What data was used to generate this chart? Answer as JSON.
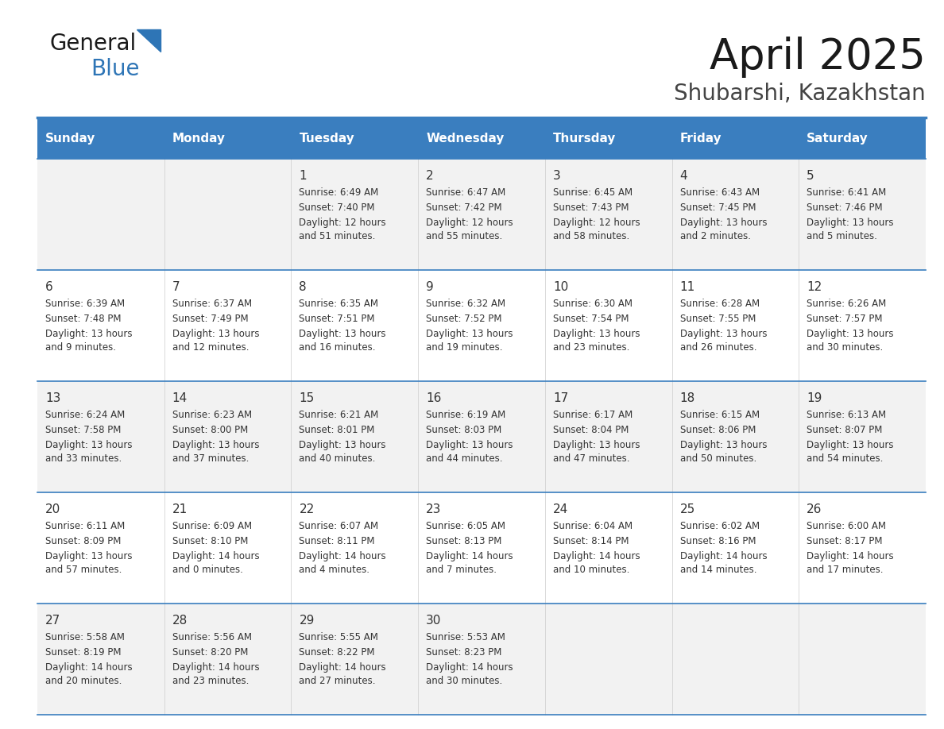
{
  "title": "April 2025",
  "subtitle": "Shubarshi, Kazakhstan",
  "header_bg": "#3a7ebf",
  "header_text": "#ffffff",
  "row_bg_odd": "#f2f2f2",
  "row_bg_even": "#ffffff",
  "text_color": "#333333",
  "line_color": "#3a7ebf",
  "days_of_week": [
    "Sunday",
    "Monday",
    "Tuesday",
    "Wednesday",
    "Thursday",
    "Friday",
    "Saturday"
  ],
  "weeks": [
    [
      {
        "day": "",
        "sunrise": "",
        "sunset": "",
        "daylight": ""
      },
      {
        "day": "",
        "sunrise": "",
        "sunset": "",
        "daylight": ""
      },
      {
        "day": "1",
        "sunrise": "Sunrise: 6:49 AM",
        "sunset": "Sunset: 7:40 PM",
        "daylight": "Daylight: 12 hours\nand 51 minutes."
      },
      {
        "day": "2",
        "sunrise": "Sunrise: 6:47 AM",
        "sunset": "Sunset: 7:42 PM",
        "daylight": "Daylight: 12 hours\nand 55 minutes."
      },
      {
        "day": "3",
        "sunrise": "Sunrise: 6:45 AM",
        "sunset": "Sunset: 7:43 PM",
        "daylight": "Daylight: 12 hours\nand 58 minutes."
      },
      {
        "day": "4",
        "sunrise": "Sunrise: 6:43 AM",
        "sunset": "Sunset: 7:45 PM",
        "daylight": "Daylight: 13 hours\nand 2 minutes."
      },
      {
        "day": "5",
        "sunrise": "Sunrise: 6:41 AM",
        "sunset": "Sunset: 7:46 PM",
        "daylight": "Daylight: 13 hours\nand 5 minutes."
      }
    ],
    [
      {
        "day": "6",
        "sunrise": "Sunrise: 6:39 AM",
        "sunset": "Sunset: 7:48 PM",
        "daylight": "Daylight: 13 hours\nand 9 minutes."
      },
      {
        "day": "7",
        "sunrise": "Sunrise: 6:37 AM",
        "sunset": "Sunset: 7:49 PM",
        "daylight": "Daylight: 13 hours\nand 12 minutes."
      },
      {
        "day": "8",
        "sunrise": "Sunrise: 6:35 AM",
        "sunset": "Sunset: 7:51 PM",
        "daylight": "Daylight: 13 hours\nand 16 minutes."
      },
      {
        "day": "9",
        "sunrise": "Sunrise: 6:32 AM",
        "sunset": "Sunset: 7:52 PM",
        "daylight": "Daylight: 13 hours\nand 19 minutes."
      },
      {
        "day": "10",
        "sunrise": "Sunrise: 6:30 AM",
        "sunset": "Sunset: 7:54 PM",
        "daylight": "Daylight: 13 hours\nand 23 minutes."
      },
      {
        "day": "11",
        "sunrise": "Sunrise: 6:28 AM",
        "sunset": "Sunset: 7:55 PM",
        "daylight": "Daylight: 13 hours\nand 26 minutes."
      },
      {
        "day": "12",
        "sunrise": "Sunrise: 6:26 AM",
        "sunset": "Sunset: 7:57 PM",
        "daylight": "Daylight: 13 hours\nand 30 minutes."
      }
    ],
    [
      {
        "day": "13",
        "sunrise": "Sunrise: 6:24 AM",
        "sunset": "Sunset: 7:58 PM",
        "daylight": "Daylight: 13 hours\nand 33 minutes."
      },
      {
        "day": "14",
        "sunrise": "Sunrise: 6:23 AM",
        "sunset": "Sunset: 8:00 PM",
        "daylight": "Daylight: 13 hours\nand 37 minutes."
      },
      {
        "day": "15",
        "sunrise": "Sunrise: 6:21 AM",
        "sunset": "Sunset: 8:01 PM",
        "daylight": "Daylight: 13 hours\nand 40 minutes."
      },
      {
        "day": "16",
        "sunrise": "Sunrise: 6:19 AM",
        "sunset": "Sunset: 8:03 PM",
        "daylight": "Daylight: 13 hours\nand 44 minutes."
      },
      {
        "day": "17",
        "sunrise": "Sunrise: 6:17 AM",
        "sunset": "Sunset: 8:04 PM",
        "daylight": "Daylight: 13 hours\nand 47 minutes."
      },
      {
        "day": "18",
        "sunrise": "Sunrise: 6:15 AM",
        "sunset": "Sunset: 8:06 PM",
        "daylight": "Daylight: 13 hours\nand 50 minutes."
      },
      {
        "day": "19",
        "sunrise": "Sunrise: 6:13 AM",
        "sunset": "Sunset: 8:07 PM",
        "daylight": "Daylight: 13 hours\nand 54 minutes."
      }
    ],
    [
      {
        "day": "20",
        "sunrise": "Sunrise: 6:11 AM",
        "sunset": "Sunset: 8:09 PM",
        "daylight": "Daylight: 13 hours\nand 57 minutes."
      },
      {
        "day": "21",
        "sunrise": "Sunrise: 6:09 AM",
        "sunset": "Sunset: 8:10 PM",
        "daylight": "Daylight: 14 hours\nand 0 minutes."
      },
      {
        "day": "22",
        "sunrise": "Sunrise: 6:07 AM",
        "sunset": "Sunset: 8:11 PM",
        "daylight": "Daylight: 14 hours\nand 4 minutes."
      },
      {
        "day": "23",
        "sunrise": "Sunrise: 6:05 AM",
        "sunset": "Sunset: 8:13 PM",
        "daylight": "Daylight: 14 hours\nand 7 minutes."
      },
      {
        "day": "24",
        "sunrise": "Sunrise: 6:04 AM",
        "sunset": "Sunset: 8:14 PM",
        "daylight": "Daylight: 14 hours\nand 10 minutes."
      },
      {
        "day": "25",
        "sunrise": "Sunrise: 6:02 AM",
        "sunset": "Sunset: 8:16 PM",
        "daylight": "Daylight: 14 hours\nand 14 minutes."
      },
      {
        "day": "26",
        "sunrise": "Sunrise: 6:00 AM",
        "sunset": "Sunset: 8:17 PM",
        "daylight": "Daylight: 14 hours\nand 17 minutes."
      }
    ],
    [
      {
        "day": "27",
        "sunrise": "Sunrise: 5:58 AM",
        "sunset": "Sunset: 8:19 PM",
        "daylight": "Daylight: 14 hours\nand 20 minutes."
      },
      {
        "day": "28",
        "sunrise": "Sunrise: 5:56 AM",
        "sunset": "Sunset: 8:20 PM",
        "daylight": "Daylight: 14 hours\nand 23 minutes."
      },
      {
        "day": "29",
        "sunrise": "Sunrise: 5:55 AM",
        "sunset": "Sunset: 8:22 PM",
        "daylight": "Daylight: 14 hours\nand 27 minutes."
      },
      {
        "day": "30",
        "sunrise": "Sunrise: 5:53 AM",
        "sunset": "Sunset: 8:23 PM",
        "daylight": "Daylight: 14 hours\nand 30 minutes."
      },
      {
        "day": "",
        "sunrise": "",
        "sunset": "",
        "daylight": ""
      },
      {
        "day": "",
        "sunrise": "",
        "sunset": "",
        "daylight": ""
      },
      {
        "day": "",
        "sunrise": "",
        "sunset": "",
        "daylight": ""
      }
    ]
  ]
}
